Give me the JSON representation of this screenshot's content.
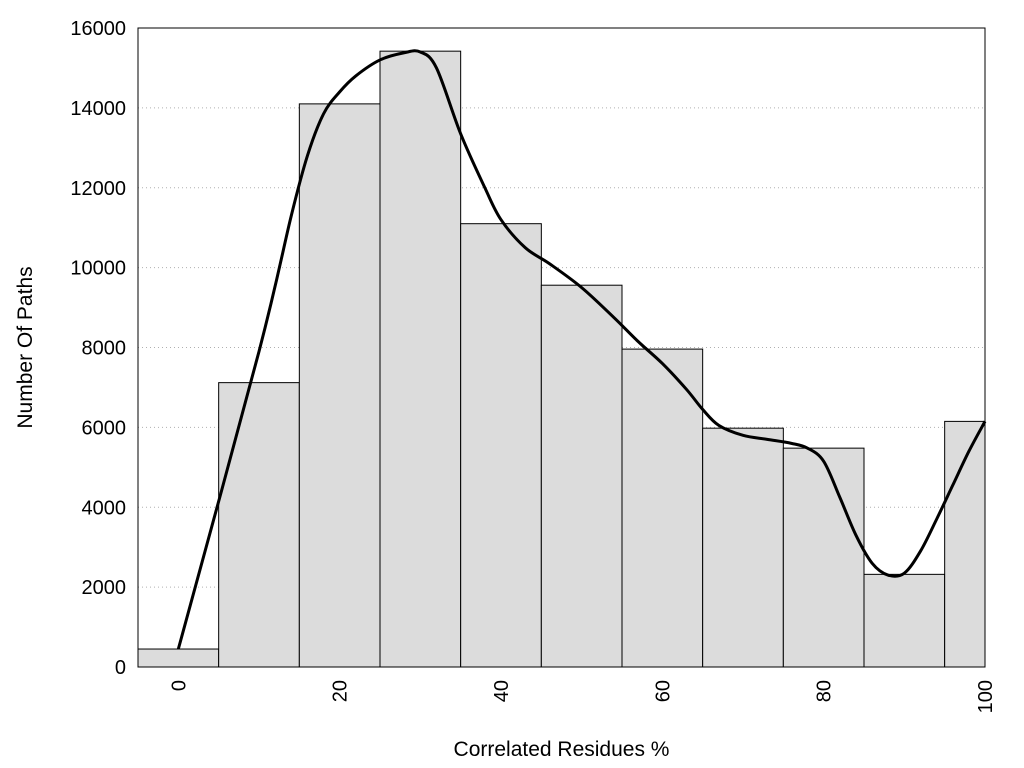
{
  "chart_data": {
    "type": "bar",
    "xlabel": "Correlated Residues %",
    "ylabel": "Number Of Paths",
    "xlim": [
      -5,
      100
    ],
    "ylim": [
      0,
      16000
    ],
    "x_ticks": [
      0,
      20,
      40,
      60,
      80,
      100
    ],
    "y_ticks": [
      0,
      2000,
      4000,
      6000,
      8000,
      10000,
      12000,
      14000,
      16000
    ],
    "grid": "horizontal-dotted",
    "bin_width": 10,
    "bins": [
      {
        "center": 0,
        "value": 450
      },
      {
        "center": 10,
        "value": 7120
      },
      {
        "center": 20,
        "value": 14100
      },
      {
        "center": 30,
        "value": 15420
      },
      {
        "center": 40,
        "value": 11100
      },
      {
        "center": 50,
        "value": 9560
      },
      {
        "center": 60,
        "value": 7960
      },
      {
        "center": 70,
        "value": 5980
      },
      {
        "center": 80,
        "value": 5480
      },
      {
        "center": 90,
        "value": 2320
      },
      {
        "center": 100,
        "value": 6150
      }
    ],
    "curve": {
      "x": [
        0,
        10,
        14,
        16,
        18,
        20,
        22,
        25,
        28,
        30,
        32,
        35,
        38,
        40,
        43,
        46,
        50,
        54,
        57,
        60,
        63,
        65,
        67,
        70,
        73,
        76,
        78,
        80,
        82,
        84,
        86,
        88,
        90,
        92,
        94,
        96,
        98,
        100
      ],
      "y": [
        450,
        7900,
        11300,
        12800,
        13850,
        14400,
        14800,
        15200,
        15380,
        15400,
        15000,
        13350,
        12000,
        11200,
        10500,
        10100,
        9500,
        8750,
        8150,
        7600,
        6950,
        6450,
        6050,
        5800,
        5700,
        5600,
        5480,
        5150,
        4250,
        3300,
        2600,
        2300,
        2350,
        2900,
        3700,
        4550,
        5400,
        6150
      ]
    },
    "colors": {
      "bar_fill": "#dcdcdc",
      "bar_stroke": "#000000",
      "curve": "#000000",
      "grid": "#b0b0b0"
    }
  }
}
